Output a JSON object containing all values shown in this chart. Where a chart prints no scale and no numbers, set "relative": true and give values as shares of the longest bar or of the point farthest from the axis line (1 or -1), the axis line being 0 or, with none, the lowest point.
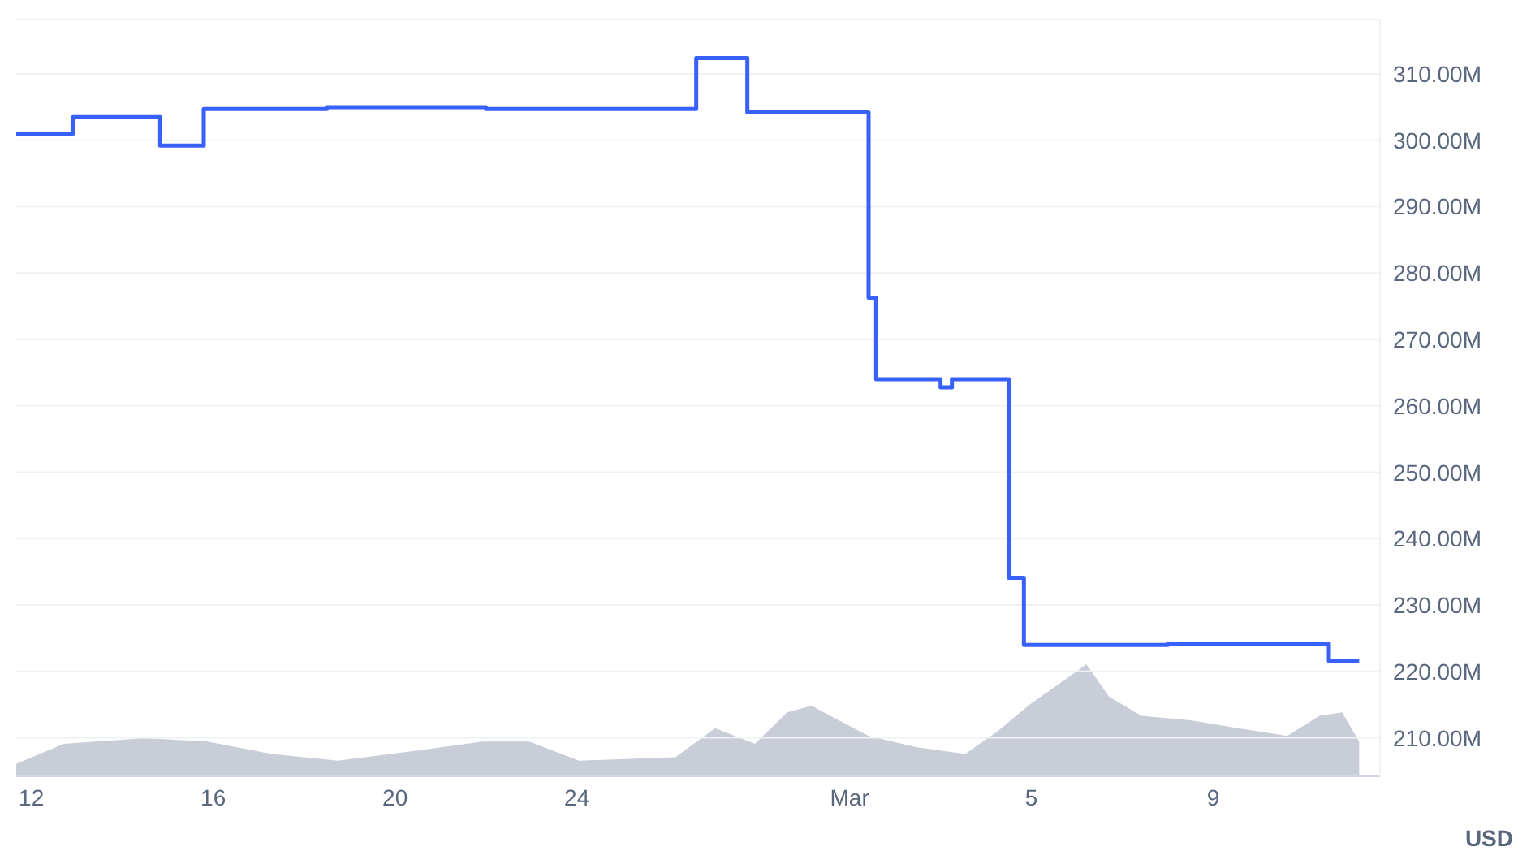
{
  "chart_data": [
    {
      "type": "step",
      "ylabel": "USD",
      "xlim": [
        "--02-11T16:00",
        "--03-12T16:00"
      ],
      "xticks": [
        {
          "value": "--02-12",
          "label": "12"
        },
        {
          "value": "--02-16",
          "label": "16"
        },
        {
          "value": "--02-20",
          "label": "20"
        },
        {
          "value": "--02-24",
          "label": "24"
        },
        {
          "value": "--03-01",
          "label": "Mar"
        },
        {
          "value": "--03-05",
          "label": "5"
        },
        {
          "value": "--03-09",
          "label": "9"
        }
      ],
      "ylim": [
        204.2,
        318.2
      ],
      "yticks": [
        {
          "value": 210,
          "label": "210.00M"
        },
        {
          "value": 220,
          "label": "220.00M"
        },
        {
          "value": 230,
          "label": "230.00M"
        },
        {
          "value": 240,
          "label": "240.00M"
        },
        {
          "value": 250,
          "label": "250.00M"
        },
        {
          "value": 260,
          "label": "260.00M"
        },
        {
          "value": 270,
          "label": "270.00M"
        },
        {
          "value": 280,
          "label": "280.00M"
        },
        {
          "value": 290,
          "label": "290.00M"
        },
        {
          "value": 300,
          "label": "300.00M"
        },
        {
          "value": 310,
          "label": "310.00M"
        }
      ],
      "grid": "y",
      "marker": "none",
      "line_style": "solid",
      "series": [
        {
          "color": "#3861fb",
          "x": [
            "--02-11T16:00",
            "--02-12T22:00",
            "--02-14T20:00",
            "--02-15T19:00",
            "--02-18T12:00",
            "--02-22T00:00",
            "--02-26T15:00",
            "--02-27T18:00",
            "--03-01T10:00",
            "--03-01T14:00",
            "--03-03T00:00",
            "--03-03T06:00",
            "--03-04T12:00",
            "--03-04T20:00",
            "--03-08T00:00",
            "--03-11T13:00",
            "--03-12T05:00"
          ],
          "values": [
            301.0,
            303.5,
            299.2,
            304.7,
            305.0,
            304.7,
            312.4,
            304.2,
            276.3,
            264.0,
            262.8,
            264.0,
            234.1,
            224.0,
            224.2,
            221.6,
            221.6
          ]
        }
      ]
    },
    {
      "type": "area",
      "relative": true,
      "xlim": [
        "--02-11T16:00",
        "--03-12T16:00"
      ],
      "series": [
        {
          "color": "#c8cdd8",
          "x": [
            "--02-11T16:00",
            "--02-12T17:00",
            "--02-14T12:00",
            "--02-15T21:00",
            "--02-17T07:00",
            "--02-18T18:00",
            "--02-20T12:00",
            "--02-21T22:00",
            "--02-22T23:00",
            "--02-24T01:00",
            "--02-26T04:00",
            "--02-27T01:00",
            "--02-27T22:00",
            "--02-28T15:00",
            "--02-29T04:00",
            "--02-29T17:00",
            "--03-01T10:00",
            "--03-02T11:00",
            "--03-03T13:00",
            "--03-04T06:00",
            "--03-04T23:00",
            "--03-05T20:00",
            "--03-06T05:00",
            "--03-06T17:00",
            "--03-07T10:00",
            "--03-08T12:00",
            "--03-09T13:00",
            "--03-10T15:00",
            "--03-11T08:00",
            "--03-11T20:00",
            "--03-12T05:00"
          ],
          "values": [
            0.11,
            0.29,
            0.34,
            0.31,
            0.2,
            0.14,
            0.23,
            0.31,
            0.31,
            0.14,
            0.17,
            0.43,
            0.29,
            0.57,
            0.63,
            0.51,
            0.36,
            0.26,
            0.2,
            0.4,
            0.64,
            0.89,
            1.0,
            0.71,
            0.54,
            0.5,
            0.43,
            0.36,
            0.54,
            0.57,
            0.31
          ]
        }
      ]
    }
  ]
}
